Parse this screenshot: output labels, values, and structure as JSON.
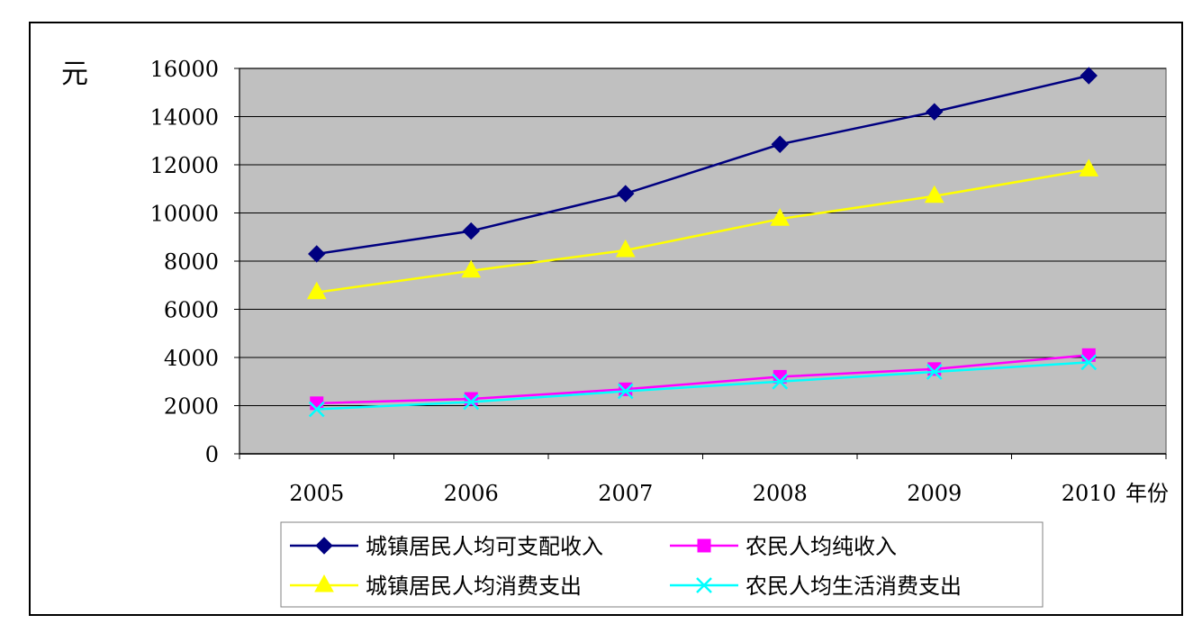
{
  "chart_data": {
    "type": "line",
    "x": [
      "2005",
      "2006",
      "2007",
      "2008",
      "2009",
      "2010"
    ],
    "ylabel": "元",
    "xlabel": "年份",
    "ylim": [
      0,
      16000
    ],
    "yticks": [
      0,
      2000,
      4000,
      6000,
      8000,
      10000,
      12000,
      14000,
      16000
    ],
    "grid": true,
    "legend_position": "bottom",
    "series": [
      {
        "name": "城镇居民人均可支配收入",
        "values": [
          8300,
          9250,
          10800,
          12850,
          14200,
          15700
        ],
        "color": "#000080",
        "marker": "diamond"
      },
      {
        "name": "农民人均纯收入",
        "values": [
          2100,
          2280,
          2680,
          3200,
          3520,
          4100
        ],
        "color": "#ff00ff",
        "marker": "square"
      },
      {
        "name": "城镇居民人均消费支出",
        "values": [
          6700,
          7600,
          8450,
          9750,
          10700,
          11800
        ],
        "color": "#ffff00",
        "marker": "triangle"
      },
      {
        "name": "农民人均生活消费支出",
        "values": [
          1850,
          2150,
          2600,
          3000,
          3400,
          3800
        ],
        "color": "#00ffff",
        "marker": "x"
      }
    ],
    "plot_background": "#c0c0c0"
  }
}
